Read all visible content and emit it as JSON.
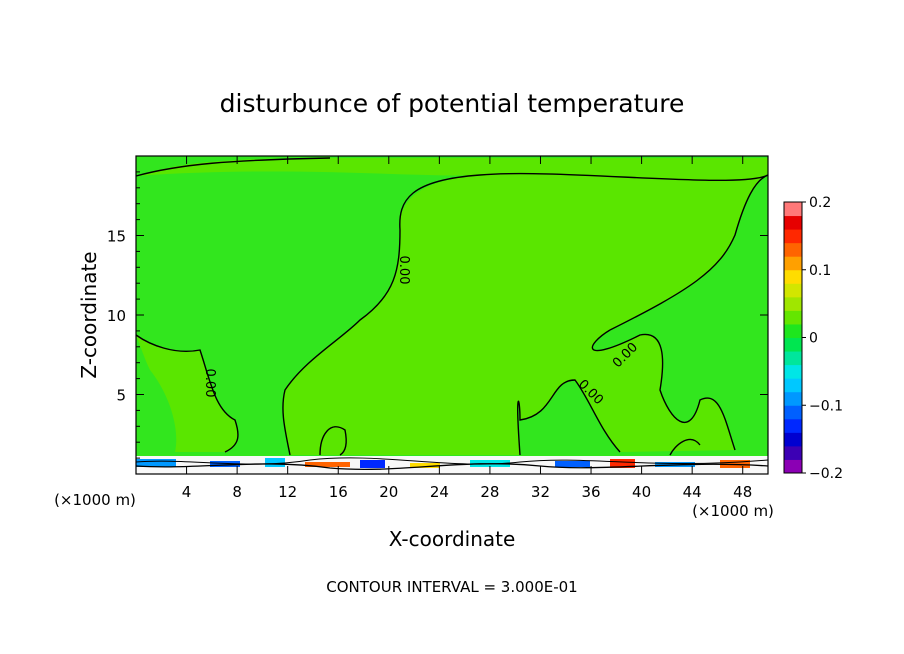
{
  "chart_data": {
    "type": "heatmap",
    "title": "disturbunce of potential temperature",
    "xlabel": "X-coordinate",
    "ylabel": "Z-coordinate",
    "x_unit_left": "(×1000 m)",
    "x_unit_right": "(×1000 m)",
    "xlim": [
      0,
      50
    ],
    "ylim": [
      0,
      20
    ],
    "xticks": [
      4,
      8,
      12,
      16,
      20,
      24,
      28,
      32,
      36,
      40,
      44,
      48
    ],
    "yticks": [
      5,
      10,
      15
    ],
    "footnote": "CONTOUR INTERVAL = 3.000E-01",
    "colorbar": {
      "range": [
        -0.2,
        0.2
      ],
      "tick_values": [
        0.2,
        0.1,
        0,
        -0.1,
        -0.2
      ],
      "tick_labels": [
        "0.2",
        "0.1",
        "0",
        "−0.1",
        "−0.2"
      ],
      "colors": [
        "#8b00b4",
        "#3c00b4",
        "#0000d0",
        "#0028ff",
        "#0060ff",
        "#0098ff",
        "#00c8ff",
        "#00e6e6",
        "#00e69c",
        "#00e650",
        "#1ee61e",
        "#64e600",
        "#a0e600",
        "#d2e600",
        "#ffdc00",
        "#ffa000",
        "#ff6400",
        "#ff2800",
        "#e60000",
        "#ff7878"
      ]
    },
    "background_value": 0,
    "contour_labels": [
      {
        "text": "0.00",
        "x": 21.5,
        "y": 12.8,
        "angle": 90
      },
      {
        "text": "0.00",
        "x": 5.8,
        "y": 5.7,
        "angle": 90
      },
      {
        "text": "0.00",
        "x": 35.0,
        "y": 5.0,
        "angle": 45
      },
      {
        "text": "0.00",
        "x": 39.0,
        "y": 7.7,
        "angle": -45
      }
    ]
  }
}
